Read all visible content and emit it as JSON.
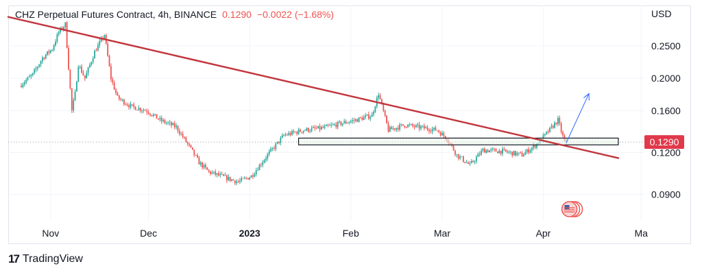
{
  "legend": {
    "title": "CHZ Perpetual Futures Contract, 4h, BINANCE",
    "last": "0.1290",
    "change": "−0.0022 (−1.68%)"
  },
  "axis": {
    "currency": "USD",
    "price_ticks": [
      "0.2500",
      "0.2000",
      "0.1600",
      "0.1200",
      "0.0900"
    ],
    "time_ticks": [
      "Nov",
      "Dec",
      "2023",
      "Feb",
      "Mar",
      "Apr",
      "Ma"
    ]
  },
  "price_label": "0.1290",
  "footer": {
    "brand": "TradingView"
  },
  "colors": {
    "up": "#26a69a",
    "down": "#ef5350",
    "trendline": "#c2363d",
    "price_tag": "#e1394a",
    "arrow": "#2962ff",
    "zone_fill": "#e8f5e9"
  },
  "chart_data": {
    "type": "candlestick",
    "symbol": "CHZ Perpetual Futures Contract",
    "interval": "4h",
    "exchange": "BINANCE",
    "y_scale": "log",
    "ylim": [
      0.075,
      0.33
    ],
    "last_price": 0.129,
    "change": -0.0022,
    "change_percent": -1.68,
    "price_series": {
      "x": [
        "2022-10-23",
        "2022-10-27",
        "2022-10-30",
        "2022-11-02",
        "2022-11-04",
        "2022-11-06",
        "2022-11-08",
        "2022-11-09",
        "2022-11-10",
        "2022-11-12",
        "2022-11-15",
        "2022-11-18",
        "2022-11-20",
        "2022-11-22",
        "2022-11-26",
        "2022-12-01",
        "2022-12-05",
        "2022-12-10",
        "2022-12-14",
        "2022-12-17",
        "2022-12-20",
        "2022-12-25",
        "2022-12-29",
        "2023-01-02",
        "2023-01-07",
        "2023-01-12",
        "2023-01-18",
        "2023-01-24",
        "2023-01-30",
        "2023-02-03",
        "2023-02-08",
        "2023-02-10",
        "2023-02-13",
        "2023-02-18",
        "2023-02-24",
        "2023-02-28",
        "2023-03-03",
        "2023-03-06",
        "2023-03-10",
        "2023-03-14",
        "2023-03-20",
        "2023-03-26",
        "2023-03-30",
        "2023-04-02",
        "2023-04-06",
        "2023-04-08"
      ],
      "close": [
        0.19,
        0.205,
        0.23,
        0.245,
        0.275,
        0.29,
        0.16,
        0.18,
        0.22,
        0.2,
        0.24,
        0.27,
        0.2,
        0.175,
        0.165,
        0.16,
        0.15,
        0.143,
        0.125,
        0.112,
        0.105,
        0.101,
        0.098,
        0.102,
        0.118,
        0.135,
        0.14,
        0.142,
        0.147,
        0.15,
        0.155,
        0.18,
        0.14,
        0.145,
        0.142,
        0.14,
        0.132,
        0.118,
        0.11,
        0.122,
        0.121,
        0.118,
        0.126,
        0.135,
        0.15,
        0.129
      ]
    },
    "drawings": [
      {
        "type": "trendline",
        "from": [
          "2022-10-19",
          0.305
        ],
        "to": [
          "2023-04-24",
          0.1155
        ]
      },
      {
        "type": "rectangle",
        "x_range": [
          "2023-01-16",
          "2023-04-24"
        ],
        "y_range": [
          0.1265,
          0.1325
        ]
      },
      {
        "type": "arrow",
        "from": [
          "2023-04-08",
          0.128
        ],
        "to": [
          "2023-04-15",
          0.18
        ]
      }
    ]
  }
}
